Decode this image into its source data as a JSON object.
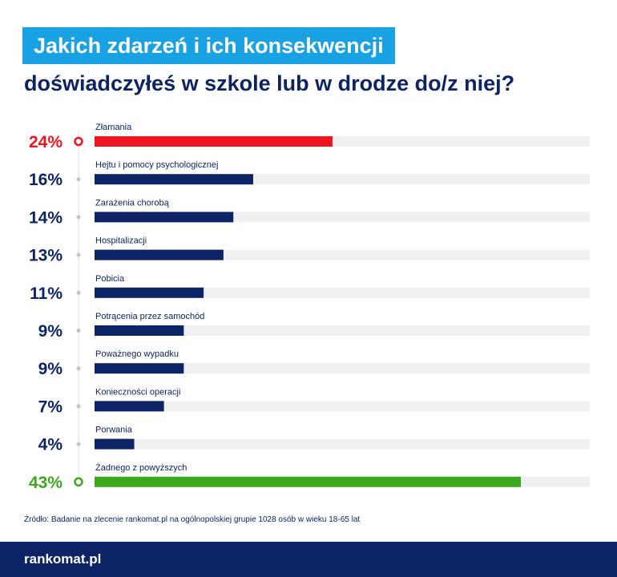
{
  "header": {
    "title_line1": "Jakich zdarzeń i ich konsekwencji",
    "title_line2": "doświadczyłeś w szkole lub w drodze do/z niej?"
  },
  "chart_data": {
    "type": "bar",
    "orientation": "horizontal",
    "categories": [
      "Złamania",
      "Hejtu i pomocy psychologicznej",
      "Zarażenia chorobą",
      "Hospitalizacji",
      "Pobicia",
      "Potrącenia przez samochód",
      "Poważnego wypadku",
      "Konieczności operacji",
      "Porwania",
      "Żadnego z powyższych"
    ],
    "values": [
      24,
      16,
      14,
      13,
      11,
      9,
      9,
      7,
      4,
      43
    ],
    "value_labels": [
      "24%",
      "16%",
      "14%",
      "13%",
      "11%",
      "9%",
      "9%",
      "7%",
      "4%",
      "43%"
    ],
    "bar_colors": [
      "#f0141e",
      "#0c2466",
      "#0c2466",
      "#0c2466",
      "#0c2466",
      "#0c2466",
      "#0c2466",
      "#0c2466",
      "#0c2466",
      "#3aaa1c"
    ],
    "xlim": [
      0,
      50
    ],
    "unit": "%",
    "grid": false,
    "legend": "none"
  },
  "colors": {
    "title_bg": "#19a2e3",
    "navy": "#0c2466",
    "red": "#f0141e",
    "green": "#3aaa1c",
    "track": "#f0f0f0"
  },
  "footer": {
    "source": "Źródło: Badanie na zlecenie rankomat.pl na ogólnopolskiej grupie 1028 osób w wieku 18-65 lat",
    "logo": "rankomat.pl"
  }
}
